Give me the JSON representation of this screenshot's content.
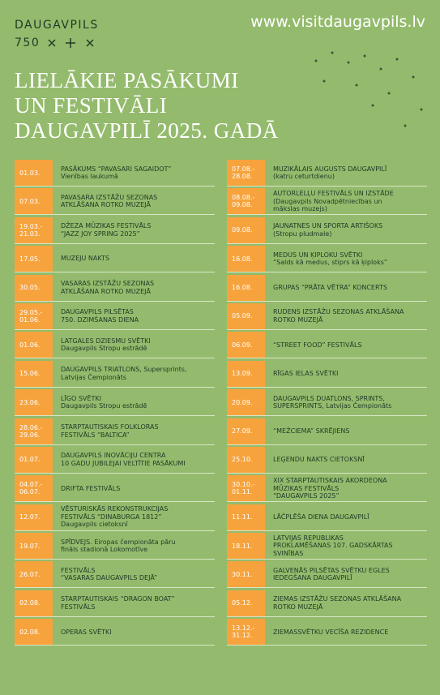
{
  "header": {
    "logo_name": "DAUGAVPILS",
    "logo_number": "750",
    "url": "www.visitdaugavpils.lv",
    "title": [
      "LIELĀKIE PASĀKUMI",
      "UN FESTIVĀLI",
      "DAUGAVPILĪ 2025. GADĀ"
    ]
  },
  "columns": [
    [
      {
        "date": [
          "01.03."
        ],
        "lines": [
          "PASĀKUMS “PAVASARI SAGAIDOT”",
          "Vienības laukumā"
        ]
      },
      {
        "date": [
          "07.03."
        ],
        "lines": [
          "PAVASARA IZSTĀŽU SEZONAS",
          "ATKLĀŠANA ROTKO MUZEJĀ"
        ]
      },
      {
        "date": [
          "19.03.-",
          "21.03."
        ],
        "lines": [
          "DŽEZA MŪZIKAS FESTIVĀLS",
          "“JAZZ JOY SPRING 2025”"
        ]
      },
      {
        "date": [
          "17.05."
        ],
        "lines": [
          "MUZEJU NAKTS"
        ]
      },
      {
        "date": [
          "30.05."
        ],
        "lines": [
          "VASARAS IZSTĀŽU SEZONAS",
          "ATKLĀŠANA ROTKO MUZEJĀ"
        ]
      },
      {
        "date": [
          "29.05.-",
          "01.06."
        ],
        "lines": [
          "DAUGAVPILS PILSĒTAS",
          "750. DZIMŠANAS DIENA"
        ]
      },
      {
        "date": [
          "01.06."
        ],
        "lines": [
          "LATGALES DZIESMU SVĒTKI",
          "Daugavpils Stropu estrādē"
        ]
      },
      {
        "date": [
          "15.06."
        ],
        "lines": [
          "DAUGAVPILS TRIATLONS, Supersprints,",
          "Latvijas Čempionāts"
        ]
      },
      {
        "date": [
          "23.06."
        ],
        "lines": [
          "LĪGO SVĒTKI",
          "Daugavpils Stropu estrādē"
        ]
      },
      {
        "date": [
          "28.06.-",
          "29.06."
        ],
        "lines": [
          "STARPTAUTISKAIS FOLKLORAS",
          "FESTIVĀLS “BALTICA”"
        ]
      },
      {
        "date": [
          "01.07."
        ],
        "lines": [
          "DAUGAVPILS INOVĀCIJU CENTRA",
          "10 GADU JUBILEJAI VELTĪTIE PASĀKUMI"
        ]
      },
      {
        "date": [
          "04.07.-",
          "06.07."
        ],
        "lines": [
          "DRIFTA FESTIVĀLS"
        ]
      },
      {
        "date": [
          "12.07."
        ],
        "lines": [
          "VĒSTURISKĀS REKONSTRUKCIJAS",
          "FESTIVĀLS “DINABURGA 1812”",
          "Daugavpils cietoksnī"
        ]
      },
      {
        "date": [
          "19.07."
        ],
        "lines": [
          "SPĪDVEJS. Eiropas čempionāta pāru",
          "fināls stadionā Lokomotīve"
        ]
      },
      {
        "date": [
          "26.07."
        ],
        "lines": [
          "FESTIVĀLS",
          "“VASARAS DAUGAVPILS DEJĀ”"
        ]
      },
      {
        "date": [
          "02.08."
        ],
        "lines": [
          "STARPTAUTISKAIS “DRAGON BOAT”",
          "FESTIVĀLS"
        ]
      },
      {
        "date": [
          "02.08."
        ],
        "lines": [
          "OPERAS SVĒTKI"
        ]
      }
    ],
    [
      {
        "date": [
          "07.08.-",
          "28.08."
        ],
        "lines": [
          "MUZIKĀLAIS AUGUSTS DAUGAVPILĪ",
          "(katru ceturtdienu)"
        ]
      },
      {
        "date": [
          "08.08.-",
          "09.08."
        ],
        "lines": [
          "AUTORLELĻU FESTIVĀLS UN IZSTĀDE",
          "(Daugavpils Novadpētniecības un",
          "mākslas muzejs)"
        ]
      },
      {
        "date": [
          "09.08."
        ],
        "lines": [
          "JAUNATNES UN SPORTA ARTIŠOKS",
          "(Stropu pludmale)"
        ]
      },
      {
        "date": [
          "16.08."
        ],
        "lines": [
          "MEDUS UN ĶIPLOKU SVĒTKI",
          "“Salds kā medus, stiprs kā ķiploks”"
        ]
      },
      {
        "date": [
          "16.08."
        ],
        "lines": [
          "GRUPAS “PRĀTA VĒTRA” KONCERTS"
        ]
      },
      {
        "date": [
          "05.09."
        ],
        "lines": [
          "RUDENS IZSTĀŽU SEZONAS ATKLĀŠANA",
          "ROTKO MUZEJĀ"
        ]
      },
      {
        "date": [
          "06.09."
        ],
        "lines": [
          "“STREET FOOD” FESTIVĀLS"
        ]
      },
      {
        "date": [
          "13.09."
        ],
        "lines": [
          "RĪGAS IELAS SVĒTKI"
        ]
      },
      {
        "date": [
          "20.09."
        ],
        "lines": [
          "DAUGAVPILS DUATLONS, SPRINTS,",
          "SUPERSPRINTS, Latvijas Čempionāts"
        ]
      },
      {
        "date": [
          "27.09."
        ],
        "lines": [
          "“MEŽCIEMA” SKRĒJIENS"
        ]
      },
      {
        "date": [
          "25.10."
        ],
        "lines": [
          "LEĢENDU NAKTS CIETOKSNĪ"
        ]
      },
      {
        "date": [
          "30.10.-",
          "01.11."
        ],
        "lines": [
          "XIX STARPTAUTISKAIS AKORDEONA",
          "MŪZIKAS FESTIVĀLS",
          "“DAUGAVPILS 2025”"
        ]
      },
      {
        "date": [
          "11.11."
        ],
        "lines": [
          "LĀČPLĒŠA DIENA DAUGAVPILĪ"
        ]
      },
      {
        "date": [
          "18.11."
        ],
        "lines": [
          "LATVIJAS REPUBLIKAS",
          "PROKLAMĒŠANAS 107. GADSKĀRTAS",
          "SVINĪBAS"
        ]
      },
      {
        "date": [
          "30.11."
        ],
        "lines": [
          "GALVENĀS PILSĒTAS SVĒTKU EGLES",
          "IEDEGŠANA DAUGAVPILĪ"
        ]
      },
      {
        "date": [
          "05.12."
        ],
        "lines": [
          "ZIEMAS IZSTĀŽU SEZONAS ATKLĀŠANA",
          "ROTKO MUZEJĀ"
        ]
      },
      {
        "date": [
          "13.12.-",
          "31.12."
        ],
        "lines": [
          "ZIEMASSVĒTKU VECĪŠA REZIDENCE"
        ]
      }
    ]
  ]
}
